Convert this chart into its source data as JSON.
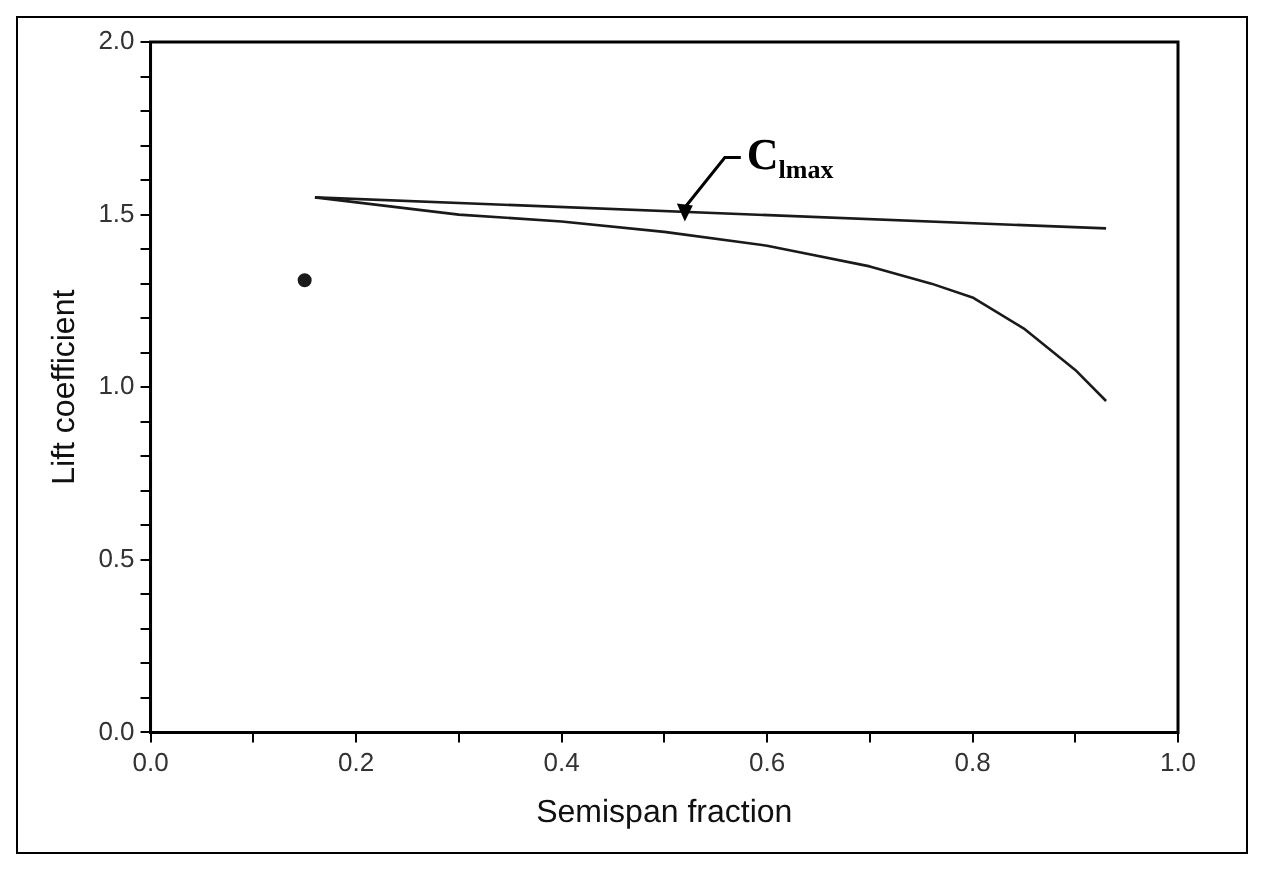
{
  "chart_data": {
    "type": "line",
    "xlabel": "Semispan fraction",
    "ylabel": "Lift coefficient",
    "xlim": [
      0,
      1
    ],
    "ylim": [
      0,
      2
    ],
    "xticks": [
      {
        "value": 0,
        "label": "0.0"
      },
      {
        "value": 0.1,
        "label": null
      },
      {
        "value": 0.2,
        "label": "0.2"
      },
      {
        "value": 0.3,
        "label": null
      },
      {
        "value": 0.4,
        "label": "0.4"
      },
      {
        "value": 0.5,
        "label": null
      },
      {
        "value": 0.6,
        "label": "0.6"
      },
      {
        "value": 0.7,
        "label": null
      },
      {
        "value": 0.8,
        "label": "0.8"
      },
      {
        "value": 0.9,
        "label": null
      },
      {
        "value": 1,
        "label": "1.0"
      }
    ],
    "yticks": [
      {
        "value": 0,
        "label": "0.0"
      },
      {
        "value": 0.1,
        "label": null
      },
      {
        "value": 0.2,
        "label": null
      },
      {
        "value": 0.3,
        "label": null
      },
      {
        "value": 0.4,
        "label": null
      },
      {
        "value": 0.5,
        "label": "0.5"
      },
      {
        "value": 0.6,
        "label": null
      },
      {
        "value": 0.7,
        "label": null
      },
      {
        "value": 0.8,
        "label": null
      },
      {
        "value": 0.9,
        "label": null
      },
      {
        "value": 1,
        "label": "1.0"
      },
      {
        "value": 1.1,
        "label": null
      },
      {
        "value": 1.2,
        "label": null
      },
      {
        "value": 1.3,
        "label": null
      },
      {
        "value": 1.4,
        "label": null
      },
      {
        "value": 1.5,
        "label": "1.5"
      },
      {
        "value": 1.6,
        "label": null
      },
      {
        "value": 1.7,
        "label": null
      },
      {
        "value": 1.8,
        "label": null
      },
      {
        "value": 1.9,
        "label": null
      },
      {
        "value": 2,
        "label": "2.0"
      }
    ],
    "grid": false,
    "marker": "none",
    "line_style": "solid",
    "series": [
      {
        "type": "line",
        "color": "#1a1a1a",
        "x": [
          0.16,
          0.93
        ],
        "values": [
          1.55,
          1.46
        ]
      },
      {
        "type": "line",
        "color": "#1a1a1a",
        "x": [
          0.16,
          0.3,
          0.4,
          0.5,
          0.6,
          0.7,
          0.76,
          0.8,
          0.85,
          0.9,
          0.93
        ],
        "values": [
          1.55,
          1.5,
          1.48,
          1.45,
          1.41,
          1.35,
          1.3,
          1.26,
          1.17,
          1.05,
          0.96
        ]
      },
      {
        "type": "scatter",
        "color": "#1a1a1a",
        "marker": "circle",
        "x": [
          0.15
        ],
        "values": [
          1.31
        ]
      }
    ],
    "annotations": [
      {
        "text": "C$_{lmax}$",
        "x": 0.52,
        "y": 1.48
      }
    ]
  }
}
